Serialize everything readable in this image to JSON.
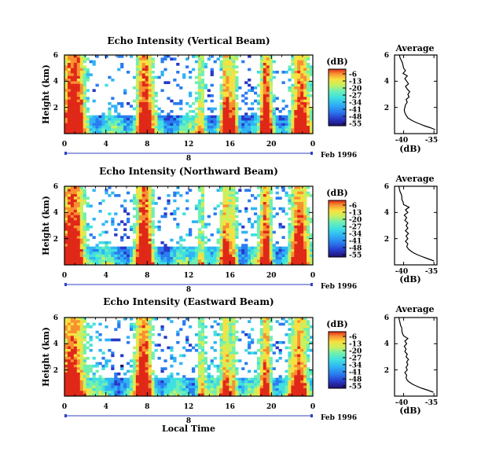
{
  "chart_data": [
    {
      "type": "heatmap",
      "title": "Echo Intensity (Vertical Beam)",
      "ylabel": "Height (km)",
      "y_ticks": [
        "2",
        "4",
        "6"
      ],
      "x_ticks": [
        "0",
        "4",
        "8",
        "12",
        "16",
        "20",
        "0"
      ],
      "xlim": [
        0,
        24
      ],
      "ylim": [
        0,
        6
      ],
      "date_label": "8",
      "date_suffix": "Feb 1996",
      "colorbar": {
        "unit": "(dB)",
        "labels": [
          "-6",
          "-13",
          "-20",
          "-27",
          "-34",
          "-41",
          "-48",
          "-55"
        ],
        "range": [
          -55,
          -6
        ]
      },
      "shown_data": "time-height echo intensity field",
      "profile": {
        "title": "Average",
        "xlabel": "(dB)",
        "x_ticks": [
          "-40",
          "-35"
        ],
        "y_ticks": [
          "2",
          "4",
          "6"
        ],
        "xlim": [
          -41.5,
          -34.5
        ],
        "ylim": [
          0,
          6
        ],
        "points": [
          [
            -34.8,
            0.3
          ],
          [
            -35.6,
            0.45
          ],
          [
            -36.6,
            0.6
          ],
          [
            -37.4,
            0.75
          ],
          [
            -38.2,
            0.9
          ],
          [
            -38.8,
            1.05
          ],
          [
            -39.3,
            1.2
          ],
          [
            -39.6,
            1.4
          ],
          [
            -39.8,
            1.6
          ],
          [
            -39.9,
            1.8
          ],
          [
            -39.8,
            2.0
          ],
          [
            -39.7,
            2.2
          ],
          [
            -39.4,
            2.4
          ],
          [
            -39.6,
            2.6
          ],
          [
            -39.1,
            2.8
          ],
          [
            -39.3,
            3.0
          ],
          [
            -39.0,
            3.2
          ],
          [
            -39.4,
            3.4
          ],
          [
            -39.7,
            3.6
          ],
          [
            -39.2,
            3.8
          ],
          [
            -39.5,
            4.0
          ],
          [
            -39.8,
            4.2
          ],
          [
            -39.4,
            4.4
          ],
          [
            -40.1,
            4.6
          ],
          [
            -39.7,
            4.8
          ],
          [
            -40.0,
            5.0
          ],
          [
            -40.1,
            5.2
          ],
          [
            -40.2,
            5.4
          ],
          [
            -40.4,
            5.6
          ],
          [
            -40.6,
            5.8
          ],
          [
            -40.7,
            6.0
          ]
        ]
      }
    },
    {
      "type": "heatmap",
      "title": "Echo Intensity (Northward Beam)",
      "ylabel": "Height (km)",
      "y_ticks": [
        "2",
        "4",
        "6"
      ],
      "x_ticks": [
        "0",
        "4",
        "8",
        "12",
        "16",
        "20",
        "0"
      ],
      "xlim": [
        0,
        24
      ],
      "ylim": [
        0,
        6
      ],
      "date_label": "8",
      "date_suffix": "Feb 1996",
      "colorbar": {
        "unit": "(dB)",
        "labels": [
          "-6",
          "-13",
          "-20",
          "-27",
          "-34",
          "-41",
          "-48",
          "-55"
        ],
        "range": [
          -55,
          -6
        ]
      },
      "shown_data": "time-height echo intensity field",
      "profile": {
        "title": "Average",
        "xlabel": "(dB)",
        "x_ticks": [
          "-40",
          "-35"
        ],
        "y_ticks": [
          "2",
          "4",
          "6"
        ],
        "xlim": [
          -41.5,
          -34.5
        ],
        "ylim": [
          0,
          6
        ],
        "points": [
          [
            -35.0,
            0.3
          ],
          [
            -35.9,
            0.45
          ],
          [
            -36.8,
            0.6
          ],
          [
            -37.6,
            0.75
          ],
          [
            -38.3,
            0.9
          ],
          [
            -38.8,
            1.05
          ],
          [
            -39.2,
            1.2
          ],
          [
            -39.5,
            1.4
          ],
          [
            -39.3,
            1.6
          ],
          [
            -39.7,
            1.8
          ],
          [
            -39.3,
            2.0
          ],
          [
            -39.6,
            2.2
          ],
          [
            -39.2,
            2.4
          ],
          [
            -39.7,
            2.6
          ],
          [
            -39.3,
            2.8
          ],
          [
            -39.6,
            3.0
          ],
          [
            -39.3,
            3.2
          ],
          [
            -39.8,
            3.4
          ],
          [
            -39.5,
            3.6
          ],
          [
            -39.9,
            3.8
          ],
          [
            -39.3,
            4.0
          ],
          [
            -39.7,
            4.2
          ],
          [
            -39.1,
            4.4
          ],
          [
            -40.0,
            4.6
          ],
          [
            -40.1,
            4.8
          ],
          [
            -40.3,
            5.0
          ],
          [
            -40.3,
            5.2
          ],
          [
            -40.4,
            5.4
          ],
          [
            -40.6,
            5.6
          ],
          [
            -40.7,
            5.8
          ],
          [
            -40.8,
            6.0
          ]
        ]
      }
    },
    {
      "type": "heatmap",
      "title": "Echo Intensity (Eastward Beam)",
      "ylabel": "Height (km)",
      "y_ticks": [
        "2",
        "4",
        "6"
      ],
      "x_ticks": [
        "0",
        "4",
        "8",
        "12",
        "16",
        "20",
        "0"
      ],
      "xlim": [
        0,
        24
      ],
      "ylim": [
        0,
        6
      ],
      "date_label": "8",
      "date_suffix": "Feb 1996",
      "xlabel": "Local Time",
      "colorbar": {
        "unit": "(dB)",
        "labels": [
          "-6",
          "-13",
          "-20",
          "-27",
          "-34",
          "-41",
          "-48",
          "-55"
        ],
        "range": [
          -55,
          -6
        ]
      },
      "shown_data": "time-height echo intensity field",
      "profile": {
        "title": "Average",
        "xlabel": "(dB)",
        "x_ticks": [
          "-40",
          "-35"
        ],
        "y_ticks": [
          "2",
          "4",
          "6"
        ],
        "xlim": [
          -41.5,
          -34.5
        ],
        "ylim": [
          0,
          6
        ],
        "points": [
          [
            -35.1,
            0.3
          ],
          [
            -36.0,
            0.45
          ],
          [
            -37.0,
            0.6
          ],
          [
            -37.8,
            0.75
          ],
          [
            -38.5,
            0.9
          ],
          [
            -39.0,
            1.05
          ],
          [
            -39.4,
            1.2
          ],
          [
            -39.6,
            1.4
          ],
          [
            -39.5,
            1.6
          ],
          [
            -39.8,
            1.8
          ],
          [
            -39.4,
            2.0
          ],
          [
            -39.6,
            2.2
          ],
          [
            -39.3,
            2.4
          ],
          [
            -39.5,
            2.6
          ],
          [
            -39.2,
            2.8
          ],
          [
            -39.6,
            3.0
          ],
          [
            -39.4,
            3.2
          ],
          [
            -39.8,
            3.4
          ],
          [
            -39.6,
            3.6
          ],
          [
            -39.9,
            3.8
          ],
          [
            -39.5,
            4.0
          ],
          [
            -39.8,
            4.2
          ],
          [
            -39.3,
            4.4
          ],
          [
            -40.0,
            4.6
          ],
          [
            -40.2,
            4.8
          ],
          [
            -40.3,
            5.0
          ],
          [
            -40.3,
            5.2
          ],
          [
            -40.5,
            5.4
          ],
          [
            -40.6,
            5.6
          ],
          [
            -40.7,
            5.8
          ],
          [
            -40.8,
            6.0
          ]
        ]
      }
    }
  ],
  "colors": {
    "colormap": [
      "#20106e",
      "#2838c8",
      "#2a7cf0",
      "#30b4f4",
      "#40e0e0",
      "#70f0b0",
      "#c8f060",
      "#f8e040",
      "#f89030",
      "#e02818"
    ],
    "axis": "#000000",
    "date_bar": "#3040c0"
  }
}
